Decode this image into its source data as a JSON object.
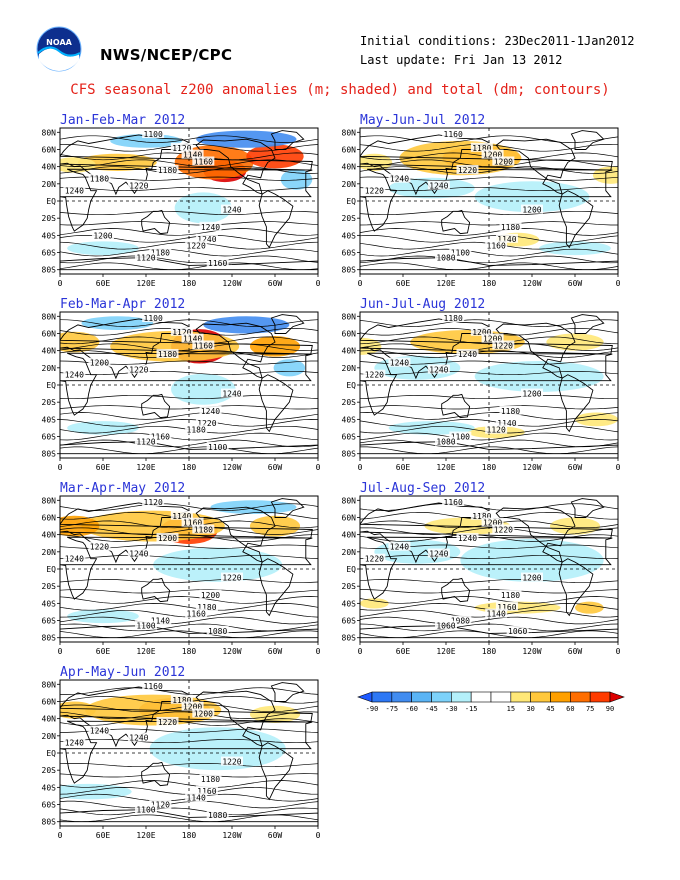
{
  "header": {
    "logo_text": "NOAA",
    "org": "NWS/NCEP/CPC",
    "initial_conditions": "Initial conditions: 23Dec2011-1Jan2012",
    "last_update": "Last update: Fri Jan 13 2012",
    "title": "CFS seasonal z200 anomalies (m; shaded) and total (dm; contours)"
  },
  "axes": {
    "lat_labels": [
      "80N",
      "60N",
      "40N",
      "20N",
      "EQ",
      "20S",
      "40S",
      "60S",
      "80S"
    ],
    "lon_labels": [
      "0",
      "60E",
      "120E",
      "180",
      "120W",
      "60W",
      "0"
    ]
  },
  "colors": {
    "scale": [
      "#1e5aff",
      "#2d78f5",
      "#418cf0",
      "#5ab4f5",
      "#7dd2fa",
      "#b4f0fa",
      "#ffffff",
      "#ffffff",
      "#ffe878",
      "#ffc83c",
      "#ffa000",
      "#ff6e00",
      "#ff3c00",
      "#dc0000"
    ]
  },
  "legend": {
    "ticks": [
      "-90",
      "-75",
      "-60",
      "-45",
      "-30",
      "-15",
      "15",
      "30",
      "45",
      "60",
      "75",
      "90"
    ]
  },
  "panels": [
    {
      "id": "jfm",
      "season": "Jan-Feb-Mar 2012",
      "contour_labels": [
        "1100",
        "1120",
        "1140",
        "1160",
        "1180",
        "1180",
        "1220",
        "1240",
        "1240",
        "1240",
        "1240",
        "1220",
        "1180",
        "1120",
        "1160",
        "1200"
      ],
      "anoms": [
        {
          "lon": 230,
          "lat": 35,
          "rx": 30,
          "ry": 13,
          "c": "#dc0000"
        },
        {
          "lon": 215,
          "lat": 45,
          "rx": 55,
          "ry": 20,
          "c": "#ff6e00"
        },
        {
          "lon": 80,
          "lat": 45,
          "rx": 55,
          "ry": 10,
          "c": "#ffc83c"
        },
        {
          "lon": 20,
          "lat": 42,
          "rx": 30,
          "ry": 9,
          "c": "#ffe878"
        },
        {
          "lon": 300,
          "lat": 52,
          "rx": 40,
          "ry": 14,
          "c": "#ff3c00"
        },
        {
          "lon": 260,
          "lat": 72,
          "rx": 70,
          "ry": 10,
          "c": "#418cf0"
        },
        {
          "lon": 120,
          "lat": 70,
          "rx": 50,
          "ry": 8,
          "c": "#7dd2fa"
        },
        {
          "lon": 200,
          "lat": -8,
          "rx": 40,
          "ry": 18,
          "c": "#b4f0fa"
        },
        {
          "lon": 330,
          "lat": 25,
          "rx": 22,
          "ry": 12,
          "c": "#7dd2fa"
        },
        {
          "lon": 60,
          "lat": -55,
          "rx": 50,
          "ry": 8,
          "c": "#b4f0fa"
        }
      ]
    },
    {
      "id": "mjj",
      "season": "May-Jun-Jul 2012",
      "contour_labels": [
        "1160",
        "1180",
        "1200",
        "1200",
        "1220",
        "1240",
        "1240",
        "1220",
        "1200",
        "1180",
        "1140",
        "1160",
        "1100",
        "1080"
      ],
      "anoms": [
        {
          "lon": 170,
          "lat": 50,
          "rx": 55,
          "ry": 14,
          "c": "#ff6e00"
        },
        {
          "lon": 140,
          "lat": 50,
          "rx": 85,
          "ry": 20,
          "c": "#ffc83c"
        },
        {
          "lon": 20,
          "lat": 45,
          "rx": 25,
          "ry": 10,
          "c": "#ffe878"
        },
        {
          "lon": 350,
          "lat": 30,
          "rx": 25,
          "ry": 10,
          "c": "#ffe878"
        },
        {
          "lon": 240,
          "lat": 5,
          "rx": 80,
          "ry": 18,
          "c": "#b4f0fa"
        },
        {
          "lon": 100,
          "lat": 15,
          "rx": 60,
          "ry": 12,
          "c": "#b4f0fa"
        },
        {
          "lon": 220,
          "lat": -45,
          "rx": 30,
          "ry": 8,
          "c": "#ffe878"
        },
        {
          "lon": 300,
          "lat": -55,
          "rx": 50,
          "ry": 8,
          "c": "#b4f0fa"
        }
      ]
    },
    {
      "id": "fma",
      "season": "Feb-Mar-Apr 2012",
      "contour_labels": [
        "1100",
        "1120",
        "1140",
        "1160",
        "1180",
        "1200",
        "1220",
        "1240",
        "1240",
        "1240",
        "1220",
        "1180",
        "1160",
        "1120",
        "1100"
      ],
      "anoms": [
        {
          "lon": 195,
          "lat": 45,
          "rx": 40,
          "ry": 20,
          "c": "#dc0000"
        },
        {
          "lon": 160,
          "lat": 45,
          "rx": 90,
          "ry": 18,
          "c": "#ffc83c"
        },
        {
          "lon": 300,
          "lat": 45,
          "rx": 35,
          "ry": 12,
          "c": "#ffa000"
        },
        {
          "lon": 20,
          "lat": 50,
          "rx": 35,
          "ry": 12,
          "c": "#ffc83c"
        },
        {
          "lon": 260,
          "lat": 70,
          "rx": 60,
          "ry": 10,
          "c": "#418cf0"
        },
        {
          "lon": 80,
          "lat": 72,
          "rx": 50,
          "ry": 8,
          "c": "#7dd2fa"
        },
        {
          "lon": 200,
          "lat": -5,
          "rx": 45,
          "ry": 18,
          "c": "#b4f0fa"
        },
        {
          "lon": 320,
          "lat": 20,
          "rx": 22,
          "ry": 10,
          "c": "#7dd2fa"
        },
        {
          "lon": 60,
          "lat": -50,
          "rx": 50,
          "ry": 8,
          "c": "#b4f0fa"
        }
      ]
    },
    {
      "id": "jja",
      "season": "Jun-Jul-Aug 2012",
      "contour_labels": [
        "1180",
        "1200",
        "1200",
        "1220",
        "1240",
        "1240",
        "1240",
        "1220",
        "1200",
        "1180",
        "1140",
        "1120",
        "1100",
        "1080"
      ],
      "anoms": [
        {
          "lon": 150,
          "lat": 50,
          "rx": 80,
          "ry": 14,
          "c": "#ffc83c"
        },
        {
          "lon": 0,
          "lat": 45,
          "rx": 30,
          "ry": 10,
          "c": "#ffe878"
        },
        {
          "lon": 300,
          "lat": 50,
          "rx": 40,
          "ry": 10,
          "c": "#ffe878"
        },
        {
          "lon": 250,
          "lat": 10,
          "rx": 90,
          "ry": 18,
          "c": "#b4f0fa"
        },
        {
          "lon": 80,
          "lat": 20,
          "rx": 60,
          "ry": 14,
          "c": "#b4f0fa"
        },
        {
          "lon": 190,
          "lat": -55,
          "rx": 40,
          "ry": 7,
          "c": "#ffe878"
        },
        {
          "lon": 330,
          "lat": -40,
          "rx": 30,
          "ry": 8,
          "c": "#ffe878"
        },
        {
          "lon": 100,
          "lat": -50,
          "rx": 60,
          "ry": 8,
          "c": "#b4f0fa"
        }
      ]
    },
    {
      "id": "mam",
      "season": "Mar-Apr-May 2012",
      "contour_labels": [
        "1120",
        "1140",
        "1160",
        "1180",
        "1200",
        "1220",
        "1240",
        "1240",
        "1220",
        "1200",
        "1180",
        "1160",
        "1140",
        "1100",
        "1080"
      ],
      "anoms": [
        {
          "lon": 180,
          "lat": 45,
          "rx": 40,
          "ry": 16,
          "c": "#ff3c00"
        },
        {
          "lon": 130,
          "lat": 50,
          "rx": 100,
          "ry": 18,
          "c": "#ffc83c"
        },
        {
          "lon": 20,
          "lat": 50,
          "rx": 35,
          "ry": 12,
          "c": "#ffa000"
        },
        {
          "lon": 300,
          "lat": 50,
          "rx": 35,
          "ry": 12,
          "c": "#ffc83c"
        },
        {
          "lon": 270,
          "lat": 72,
          "rx": 60,
          "ry": 8,
          "c": "#7dd2fa"
        },
        {
          "lon": 220,
          "lat": 5,
          "rx": 90,
          "ry": 20,
          "c": "#b4f0fa"
        },
        {
          "lon": 60,
          "lat": -55,
          "rx": 50,
          "ry": 8,
          "c": "#b4f0fa"
        }
      ]
    },
    {
      "id": "jas",
      "season": "Jul-Aug-Sep 2012",
      "contour_labels": [
        "1160",
        "1180",
        "1200",
        "1220",
        "1240",
        "1240",
        "1240",
        "1220",
        "1200",
        "1180",
        "1160",
        "1140",
        "1080",
        "1060",
        "1060"
      ],
      "anoms": [
        {
          "lon": 150,
          "lat": 50,
          "rx": 60,
          "ry": 10,
          "c": "#ffe878"
        },
        {
          "lon": 300,
          "lat": 50,
          "rx": 35,
          "ry": 10,
          "c": "#ffe878"
        },
        {
          "lon": 240,
          "lat": 10,
          "rx": 100,
          "ry": 25,
          "c": "#b4f0fa"
        },
        {
          "lon": 80,
          "lat": 20,
          "rx": 60,
          "ry": 14,
          "c": "#b4f0fa"
        },
        {
          "lon": 220,
          "lat": -45,
          "rx": 60,
          "ry": 7,
          "c": "#ffe878"
        },
        {
          "lon": 20,
          "lat": -40,
          "rx": 20,
          "ry": 6,
          "c": "#ffe878"
        },
        {
          "lon": 320,
          "lat": -45,
          "rx": 20,
          "ry": 7,
          "c": "#ffc83c"
        }
      ]
    },
    {
      "id": "amj",
      "season": "Apr-May-Jun 2012",
      "contour_labels": [
        "1160",
        "1180",
        "1200",
        "1200",
        "1220",
        "1240",
        "1240",
        "1240",
        "1220",
        "1180",
        "1160",
        "1140",
        "1120",
        "1100",
        "1080"
      ],
      "anoms": [
        {
          "lon": 160,
          "lat": 50,
          "rx": 50,
          "ry": 14,
          "c": "#ff6e00"
        },
        {
          "lon": 130,
          "lat": 50,
          "rx": 95,
          "ry": 18,
          "c": "#ffc83c"
        },
        {
          "lon": 20,
          "lat": 50,
          "rx": 30,
          "ry": 10,
          "c": "#ffc83c"
        },
        {
          "lon": 300,
          "lat": 45,
          "rx": 35,
          "ry": 10,
          "c": "#ffe878"
        },
        {
          "lon": 220,
          "lat": 5,
          "rx": 95,
          "ry": 25,
          "c": "#b4f0fa"
        },
        {
          "lon": 40,
          "lat": -45,
          "rx": 60,
          "ry": 9,
          "c": "#b4f0fa"
        }
      ]
    }
  ]
}
